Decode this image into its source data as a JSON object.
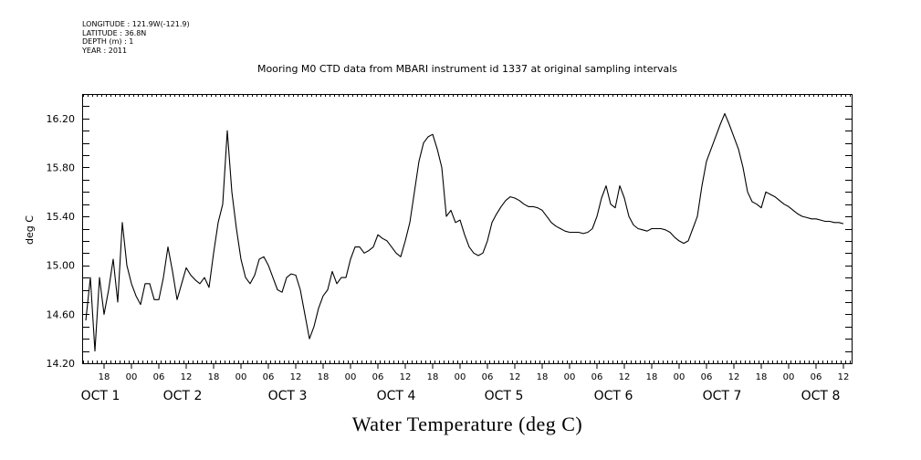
{
  "header": {
    "longitude": "LONGITUDE : 121.9W(-121.9)",
    "latitude": "LATITUDE : 36.8N",
    "depth": "DEPTH (m) : 1",
    "year": "YEAR : 2011"
  },
  "chart_data": {
    "type": "line",
    "title": "Mooring M0 CTD data from MBARI instrument id 1337 at original sampling intervals",
    "xlabel": "Water Temperature (deg C)",
    "ylabel": "deg C",
    "ylim": [
      14.2,
      16.4
    ],
    "y_ticks": [
      "14.20",
      "14.60",
      "15.00",
      "15.40",
      "15.80",
      "16.20"
    ],
    "x_hour_ticks": [
      "18",
      "00",
      "06",
      "12",
      "18",
      "00",
      "06",
      "12",
      "18",
      "00",
      "06",
      "12",
      "18",
      "00",
      "06",
      "12",
      "18",
      "00",
      "06",
      "12",
      "18",
      "00",
      "06",
      "12",
      "18",
      "00",
      "06",
      "12"
    ],
    "date_labels": [
      "OCT 1",
      "OCT 2",
      "OCT 3",
      "OCT 4",
      "OCT 5",
      "OCT 6",
      "OCT 7",
      "OCT 8"
    ],
    "grid": false,
    "series": [
      {
        "x_hours": [
          0,
          1,
          2,
          3,
          4,
          5,
          6,
          7,
          8,
          9,
          10,
          11,
          12,
          13,
          14,
          15,
          16,
          17,
          18,
          19,
          20,
          21,
          22,
          23,
          24,
          25,
          26,
          27,
          28,
          29,
          30,
          31,
          32,
          33,
          34,
          35,
          36,
          37,
          38,
          39,
          40,
          41,
          42,
          43,
          44,
          45,
          46,
          47,
          48,
          49,
          50,
          51,
          52,
          53,
          54,
          55,
          56,
          57,
          58,
          59,
          60,
          61,
          62,
          63,
          64,
          65,
          66,
          67,
          68,
          69,
          70,
          71,
          72,
          73,
          74,
          75,
          76,
          77,
          78,
          79,
          80,
          81,
          82,
          83,
          84,
          85,
          86,
          87,
          88,
          89,
          90,
          91,
          92,
          93,
          94,
          95,
          96,
          97,
          98,
          99,
          100,
          101,
          102,
          103,
          104,
          105,
          106,
          107,
          108,
          109,
          110,
          111,
          112,
          113,
          114,
          115,
          116,
          117,
          118,
          119,
          120,
          121,
          122,
          123,
          124,
          125,
          126,
          127,
          128,
          129,
          130,
          131,
          132,
          133,
          134,
          135,
          136,
          137,
          138,
          139,
          140,
          141,
          142,
          143,
          144,
          145,
          146,
          147,
          148,
          149,
          150,
          151,
          152,
          153,
          154,
          155,
          156,
          157,
          158,
          159,
          160,
          161,
          162,
          163,
          164,
          165,
          166
        ],
        "values": [
          14.55,
          14.9,
          14.3,
          14.9,
          14.6,
          14.8,
          15.05,
          14.7,
          15.35,
          15.0,
          14.85,
          14.75,
          14.68,
          14.85,
          14.85,
          14.72,
          14.72,
          14.9,
          15.15,
          14.95,
          14.72,
          14.85,
          14.98,
          14.92,
          14.88,
          14.85,
          14.9,
          14.82,
          15.1,
          15.35,
          15.5,
          16.1,
          15.6,
          15.3,
          15.05,
          14.9,
          14.85,
          14.92,
          15.05,
          15.07,
          15.0,
          14.9,
          14.8,
          14.78,
          14.9,
          14.93,
          14.92,
          14.8,
          14.6,
          14.4,
          14.5,
          14.65,
          14.75,
          14.8,
          14.95,
          14.85,
          14.9,
          14.9,
          15.05,
          15.15,
          15.15,
          15.1,
          15.12,
          15.15,
          15.25,
          15.22,
          15.2,
          15.15,
          15.1,
          15.07,
          15.2,
          15.35,
          15.6,
          15.85,
          16.0,
          16.05,
          16.07,
          15.95,
          15.8,
          15.4,
          15.45,
          15.35,
          15.37,
          15.25,
          15.15,
          15.1,
          15.08,
          15.1,
          15.2,
          15.35,
          15.42,
          15.48,
          15.53,
          15.56,
          15.55,
          15.53,
          15.5,
          15.48,
          15.48,
          15.47,
          15.45,
          15.4,
          15.35,
          15.32,
          15.3,
          15.28,
          15.27,
          15.27,
          15.27,
          15.26,
          15.27,
          15.3,
          15.4,
          15.55,
          15.65,
          15.5,
          15.47,
          15.65,
          15.55,
          15.4,
          15.33,
          15.3,
          15.29,
          15.28,
          15.3,
          15.3,
          15.3,
          15.29,
          15.27,
          15.23,
          15.2,
          15.18,
          15.2,
          15.3,
          15.4,
          15.65,
          15.85,
          15.95,
          16.05,
          16.15,
          16.24,
          16.15,
          16.05,
          15.95,
          15.8,
          15.6,
          15.52,
          15.5,
          15.47,
          15.6,
          15.58,
          15.56,
          15.53,
          15.5,
          15.48,
          15.45,
          15.42,
          15.4,
          15.39,
          15.38,
          15.38,
          15.37,
          15.36,
          15.36,
          15.35,
          15.35,
          15.34
        ]
      }
    ]
  }
}
